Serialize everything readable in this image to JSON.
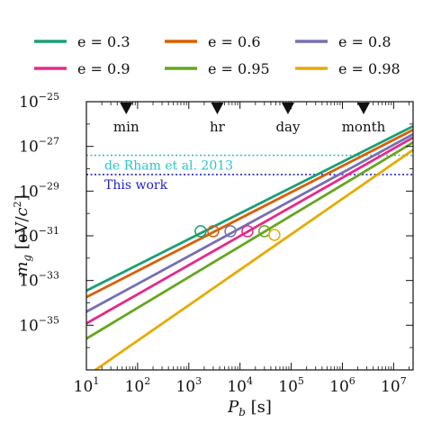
{
  "chart_data": {
    "type": "line",
    "x_scale": "log",
    "y_scale": "log",
    "xlim": [
      10,
      24000000
    ],
    "ylim": [
      1e-37,
      1e-25
    ],
    "xlabel": "P_b [s]",
    "ylabel": "m_g [eV/c^2]",
    "x_ticks": [
      {
        "value": 10,
        "base": "10",
        "exp": "1"
      },
      {
        "value": 100,
        "base": "10",
        "exp": "2"
      },
      {
        "value": 1000,
        "base": "10",
        "exp": "3"
      },
      {
        "value": 10000,
        "base": "10",
        "exp": "4"
      },
      {
        "value": 100000,
        "base": "10",
        "exp": "5"
      },
      {
        "value": 1000000,
        "base": "10",
        "exp": "6"
      },
      {
        "value": 10000000,
        "base": "10",
        "exp": "7"
      }
    ],
    "y_ticks": [
      {
        "value": 1e-25,
        "base": "10",
        "exp": "−25"
      },
      {
        "value": 1e-27,
        "base": "10",
        "exp": "−27"
      },
      {
        "value": 1e-29,
        "base": "10",
        "exp": "−29"
      },
      {
        "value": 1e-31,
        "base": "10",
        "exp": "−31"
      },
      {
        "value": 1e-33,
        "base": "10",
        "exp": "−33"
      },
      {
        "value": 1e-35,
        "base": "10",
        "exp": "−35"
      }
    ],
    "series": [
      {
        "name": "e = 0.3",
        "color": "#1b9e77",
        "points": [
          [
            10,
            3.5e-34
          ],
          [
            24000000,
            8e-27
          ]
        ],
        "marker": [
          1700,
          1.6e-31
        ]
      },
      {
        "name": "e = 0.6",
        "color": "#d95f02",
        "points": [
          [
            10,
            1.8e-34
          ],
          [
            24000000,
            5.5e-27
          ]
        ],
        "marker": [
          3000,
          1.6e-31
        ]
      },
      {
        "name": "e = 0.8",
        "color": "#7570b3",
        "points": [
          [
            10,
            4e-35
          ],
          [
            24000000,
            3.5e-27
          ]
        ],
        "marker": [
          6500,
          1.6e-31
        ]
      },
      {
        "name": "e = 0.9",
        "color": "#e7298a",
        "points": [
          [
            10,
            1.2e-35
          ],
          [
            24000000,
            2.5e-27
          ]
        ],
        "marker": [
          14000,
          1.6e-31
        ]
      },
      {
        "name": "e = 0.95",
        "color": "#66a61e",
        "points": [
          [
            10,
            2.5e-36
          ],
          [
            24000000,
            1.5e-27
          ]
        ],
        "marker": [
          30000,
          1.6e-31
        ]
      },
      {
        "name": "e = 0.98",
        "color": "#e6ab02",
        "points": [
          [
            15,
            1e-37
          ],
          [
            24000000,
            7e-28
          ]
        ],
        "marker": [
          47000,
          1.1e-31
        ]
      }
    ],
    "timescales": [
      {
        "label": "min",
        "value": 60
      },
      {
        "label": "hr",
        "value": 3600
      },
      {
        "label": "day",
        "value": 86400
      },
      {
        "label": "month",
        "value": 2592000
      }
    ],
    "reference_lines": [
      {
        "label": "de Rham et al. 2013",
        "value": 4e-28,
        "color": "#2ec4c4"
      },
      {
        "label": "This work",
        "value": 5.5e-29,
        "color": "#2222cc"
      }
    ]
  }
}
